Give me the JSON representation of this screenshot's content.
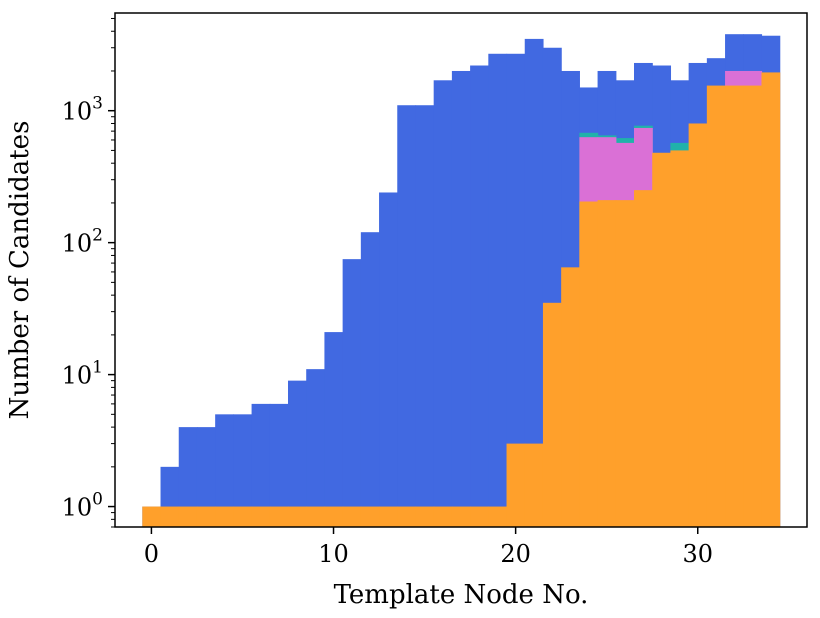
{
  "chart_data": {
    "type": "bar",
    "scale": {
      "x": "linear",
      "y": "log10"
    },
    "xlabel": "Template Node No.",
    "ylabel": "Number of Candidates",
    "xlim": [
      -2,
      36
    ],
    "ylim": [
      0.7,
      5500
    ],
    "x_ticks": [
      0,
      10,
      20,
      30
    ],
    "y_ticks": [
      {
        "value": 1,
        "base": "10",
        "exp": "0"
      },
      {
        "value": 10,
        "base": "10",
        "exp": "1"
      },
      {
        "value": 100,
        "base": "10",
        "exp": "2"
      },
      {
        "value": 1000,
        "base": "10",
        "exp": "3"
      }
    ],
    "grid": false,
    "legend": "none",
    "bar_width": 1,
    "x": [
      0,
      1,
      2,
      3,
      4,
      5,
      6,
      7,
      8,
      9,
      10,
      11,
      12,
      13,
      14,
      15,
      16,
      17,
      18,
      19,
      20,
      21,
      22,
      23,
      24,
      25,
      26,
      27,
      28,
      29,
      30,
      31,
      32,
      33,
      34
    ],
    "series": [
      {
        "color": "#4169e1",
        "values": [
          1,
          2,
          4,
          4,
          5,
          5,
          6,
          6,
          9,
          11,
          21,
          75,
          120,
          240,
          1100,
          1100,
          1700,
          2000,
          2200,
          2700,
          2700,
          3500,
          3000,
          2000,
          1500,
          2000,
          1700,
          2300,
          2200,
          1700,
          2300,
          2500,
          3800,
          3800,
          3700
        ]
      },
      {
        "color": "#20b2aa",
        "values": [
          null,
          null,
          null,
          null,
          null,
          null,
          null,
          null,
          null,
          null,
          null,
          null,
          null,
          null,
          null,
          null,
          null,
          null,
          null,
          null,
          null,
          null,
          null,
          null,
          680,
          650,
          620,
          770,
          null,
          570,
          null,
          null,
          null,
          null,
          null
        ]
      },
      {
        "color": "#da70d6",
        "values": [
          null,
          null,
          null,
          null,
          null,
          null,
          null,
          null,
          null,
          null,
          null,
          null,
          null,
          null,
          null,
          null,
          null,
          null,
          null,
          null,
          null,
          null,
          null,
          null,
          630,
          630,
          570,
          740,
          null,
          null,
          null,
          null,
          2000,
          2000,
          null
        ]
      },
      {
        "color": "#ffa02b",
        "values": [
          1,
          1,
          1,
          1,
          1,
          1,
          1,
          1,
          1,
          1,
          1,
          1,
          1,
          1,
          1,
          1,
          1,
          1,
          1,
          1,
          3,
          3,
          35,
          65,
          205,
          210,
          210,
          250,
          480,
          500,
          800,
          1550,
          1550,
          1550,
          1950
        ]
      }
    ]
  }
}
